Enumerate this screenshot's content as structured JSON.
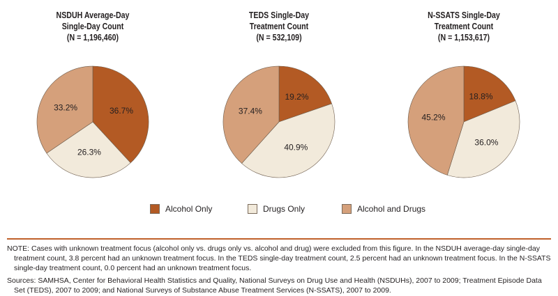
{
  "chart_data": [
    {
      "type": "pie",
      "title": [
        "NSDUH Average-Day",
        "Single-Day Count",
        "(N = 1,196,460)"
      ],
      "categories": [
        "Alcohol Only",
        "Drugs Only",
        "Alcohol and Drugs"
      ],
      "values": [
        36.7,
        26.3,
        33.2
      ],
      "labels": [
        "36.7%",
        "26.3%",
        "33.2%"
      ]
    },
    {
      "type": "pie",
      "title": [
        "TEDS Single-Day",
        "Treatment Count",
        "(N = 532,109)"
      ],
      "categories": [
        "Alcohol Only",
        "Drugs Only",
        "Alcohol and Drugs"
      ],
      "values": [
        19.2,
        40.9,
        37.4
      ],
      "labels": [
        "19.2%",
        "40.9%",
        "37.4%"
      ]
    },
    {
      "type": "pie",
      "title": [
        "N-SSATS Single-Day",
        "Treatment Count",
        "(N = 1,153,617)"
      ],
      "categories": [
        "Alcohol Only",
        "Drugs Only",
        "Alcohol and Drugs"
      ],
      "values": [
        18.8,
        36.0,
        45.2
      ],
      "labels": [
        "18.8%",
        "36.0%",
        "45.2%"
      ]
    }
  ],
  "legend": {
    "position": "bottom",
    "items": [
      {
        "label": "Alcohol Only",
        "color": "#b35a24"
      },
      {
        "label": "Drugs Only",
        "color": "#f2eadb"
      },
      {
        "label": "Alcohol and Drugs",
        "color": "#d5a07b"
      }
    ]
  },
  "notes": {
    "note": "NOTE: Cases with unknown treatment focus (alcohol only vs. drugs only vs. alcohol and drug) were excluded from this figure. In the NSDUH average-day single-day treatment count, 3.8 percent had an unknown treatment focus. In the TEDS single-day treatment count, 2.5 percent had an unknown treatment focus. In the N-SSATS single-day treatment count, 0.0 percent had an unknown treatment focus.",
    "sources": "Sources: SAMHSA, Center for Behavioral Health Statistics and Quality, National Surveys on Drug Use and Health (NSDUHs), 2007 to 2009; Treatment Episode Data Set (TEDS), 2007 to 2009; and National Surveys of Substance Abuse Treatment Services (N-SSATS), 2007 to 2009."
  }
}
